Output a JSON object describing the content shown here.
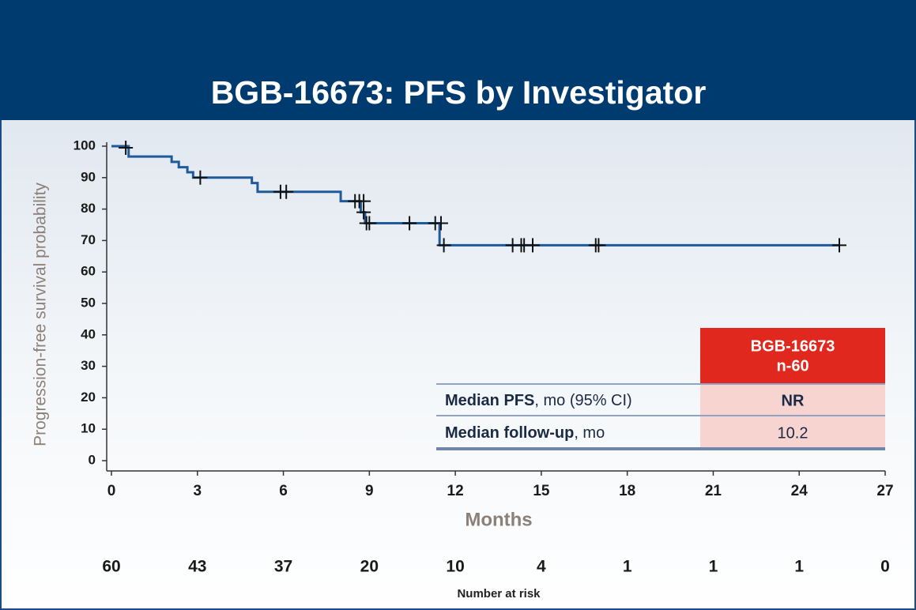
{
  "chart_data": {
    "type": "line",
    "title": "BGB-16673: PFS by Investigator",
    "x_label": "Months",
    "y_label": "Progression-free survival probability",
    "xlim": [
      0,
      27
    ],
    "ylim": [
      0,
      100
    ],
    "xticks": [
      0,
      3,
      6,
      9,
      12,
      15,
      18,
      21,
      24,
      27
    ],
    "yticks": [
      0,
      10,
      20,
      30,
      40,
      50,
      60,
      70,
      80,
      90,
      100
    ],
    "series": [
      {
        "color": "#1f5a9a",
        "x": [
          0,
          0.6,
          0.6,
          2.1,
          2.1,
          2.35,
          2.35,
          2.65,
          2.65,
          2.85,
          2.85,
          4.9,
          4.9,
          5.1,
          5.1,
          8.0,
          8.0,
          8.7,
          8.7,
          8.85,
          8.85,
          11.45,
          11.45,
          25.4
        ],
        "values": [
          100,
          100,
          96.7,
          96.7,
          95,
          95,
          93.3,
          93.3,
          91.7,
          91.7,
          90,
          90,
          88.3,
          88.3,
          85.5,
          85.5,
          82.5,
          82.5,
          79,
          79,
          75.5,
          75.5,
          68.5,
          68.5
        ]
      },
      {
        "color": "#111111",
        "marker": "+",
        "x": [
          0.5,
          3.1,
          5.9,
          6.1,
          8.5,
          8.65,
          8.8,
          8.8,
          8.9,
          9.0,
          10.4,
          11.3,
          11.5,
          11.6,
          14.0,
          14.3,
          14.4,
          14.7,
          16.9,
          17.0,
          25.4
        ],
        "values": [
          99.5,
          90,
          85.5,
          85.5,
          82.5,
          82.5,
          82.5,
          79,
          75.5,
          75.5,
          75.5,
          75.5,
          75.5,
          68.5,
          68.5,
          68.5,
          68.5,
          68.5,
          68.5,
          68.5,
          68.5
        ]
      }
    ],
    "at_risk": {
      "label": "Number at risk",
      "x": [
        0,
        3,
        6,
        9,
        12,
        15,
        18,
        21,
        24,
        27
      ],
      "values": [
        60,
        43,
        37,
        20,
        10,
        4,
        1,
        1,
        1,
        0
      ]
    },
    "table": {
      "header": [
        "BGB-16673",
        "n-60"
      ],
      "rows": [
        {
          "label_bold": "Median PFS",
          "label_rest": ", mo (95% CI)",
          "value": "NR"
        },
        {
          "label_bold": "Median follow-up",
          "label_rest": ", mo",
          "value": "10.2"
        }
      ]
    }
  }
}
